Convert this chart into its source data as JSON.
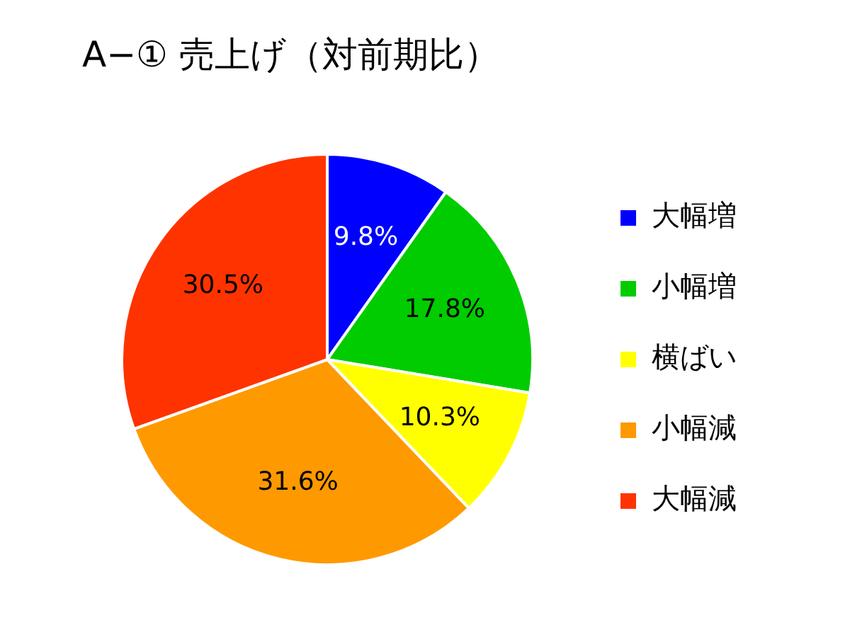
{
  "chart_data": {
    "type": "pie",
    "title": "A−① 売上げ（対前期比）",
    "categories": [
      "大幅増",
      "小幅増",
      "横ばい",
      "小幅減",
      "大幅減"
    ],
    "values": [
      9.8,
      17.8,
      10.3,
      31.6,
      30.5
    ],
    "value_labels": [
      "9.8%",
      "17.8%",
      "10.3%",
      "31.6%",
      "30.5%"
    ],
    "colors": [
      "#0000ff",
      "#00cc00",
      "#ffff00",
      "#ff9900",
      "#ff3300"
    ],
    "legend": "right"
  }
}
